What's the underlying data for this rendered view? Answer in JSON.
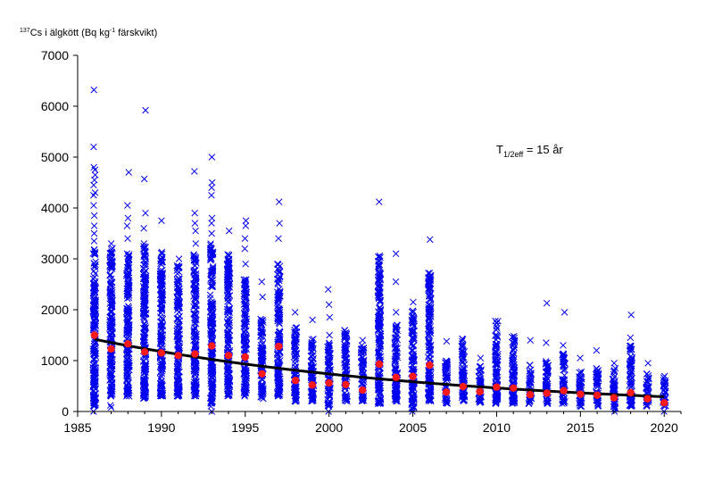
{
  "chart_data": {
    "type": "scatter",
    "ylabel": {
      "superscript": "137",
      "text_before_sup": "Cs i älgkött (Bq kg",
      "unit_superscript": "-1",
      "text_after_sup": "  färskvikt)"
    },
    "annotation": {
      "main": "T",
      "subscript": "1/2eff",
      "rest": " = 15 år"
    },
    "xlim": [
      1985,
      2021
    ],
    "ylim": [
      0,
      7000
    ],
    "x_ticks": [
      1985,
      1990,
      1995,
      2000,
      2005,
      2010,
      2015,
      2020
    ],
    "y_ticks": [
      0,
      1000,
      2000,
      3000,
      4000,
      5000,
      6000,
      7000
    ],
    "colors": {
      "samples": "#0000ee",
      "means": "#ff1a1a",
      "fit": "#000000"
    },
    "series": [
      {
        "kind": "samples",
        "marker": "x",
        "distribution": [
          {
            "year": 1986,
            "dense_min": 100,
            "dense_max": 3200,
            "outliers": [
              0,
              200,
              3350,
              3500,
              3650,
              3850,
              4050,
              4250,
              4300,
              4450,
              4550,
              4650,
              4750,
              4800,
              5200,
              6320
            ]
          },
          {
            "year": 1987,
            "dense_min": 300,
            "dense_max": 3250,
            "outliers": [
              80,
              120,
              3300
            ]
          },
          {
            "year": 1988,
            "dense_min": 300,
            "dense_max": 3200,
            "outliers": [
              3400,
              3650,
              3800,
              4050,
              4700
            ]
          },
          {
            "year": 1989,
            "dense_min": 250,
            "dense_max": 3250,
            "outliers": [
              3300,
              3600,
              3900,
              4570,
              5920
            ]
          },
          {
            "year": 1990,
            "dense_min": 300,
            "dense_max": 3150,
            "outliers": [
              3750
            ]
          },
          {
            "year": 1991,
            "dense_min": 300,
            "dense_max": 2900,
            "outliers": [
              3000
            ]
          },
          {
            "year": 1992,
            "dense_min": 300,
            "dense_max": 3100,
            "outliers": [
              3300,
              3550,
              3700,
              3900,
              4720
            ]
          },
          {
            "year": 1993,
            "dense_min": 150,
            "dense_max": 3300,
            "outliers": [
              0,
              100,
              3500,
              3700,
              3800,
              4250,
              4400,
              4500,
              5000
            ]
          },
          {
            "year": 1994,
            "dense_min": 300,
            "dense_max": 3100,
            "outliers": [
              3550
            ]
          },
          {
            "year": 1995,
            "dense_min": 300,
            "dense_max": 2600,
            "outliers": [
              2900,
              3200,
              3400,
              3650,
              3750
            ]
          },
          {
            "year": 1996,
            "dense_min": 250,
            "dense_max": 1850,
            "outliers": [
              2250,
              2550
            ]
          },
          {
            "year": 1997,
            "dense_min": 300,
            "dense_max": 2900,
            "outliers": [
              3400,
              3700,
              4120
            ]
          },
          {
            "year": 1998,
            "dense_min": 200,
            "dense_max": 1650,
            "outliers": [
              1950
            ]
          },
          {
            "year": 1999,
            "dense_min": 200,
            "dense_max": 1450,
            "outliers": [
              1800
            ]
          },
          {
            "year": 2000,
            "dense_min": 100,
            "dense_max": 1350,
            "outliers": [
              0,
              1500,
              1850,
              2100,
              2400
            ]
          },
          {
            "year": 2001,
            "dense_min": 200,
            "dense_max": 1600,
            "outliers": []
          },
          {
            "year": 2002,
            "dense_min": 200,
            "dense_max": 1300,
            "outliers": [
              1400
            ]
          },
          {
            "year": 2003,
            "dense_min": 150,
            "dense_max": 3100,
            "outliers": [
              4120
            ]
          },
          {
            "year": 2004,
            "dense_min": 200,
            "dense_max": 1700,
            "outliers": [
              1950,
              2550,
              3100
            ]
          },
          {
            "year": 2005,
            "dense_min": 50,
            "dense_max": 2000,
            "outliers": [
              0,
              2150
            ]
          },
          {
            "year": 2006,
            "dense_min": 200,
            "dense_max": 2750,
            "outliers": [
              3380
            ]
          },
          {
            "year": 2007,
            "dense_min": 150,
            "dense_max": 1000,
            "outliers": [
              1380
            ]
          },
          {
            "year": 2008,
            "dense_min": 200,
            "dense_max": 1450,
            "outliers": []
          },
          {
            "year": 2009,
            "dense_min": 150,
            "dense_max": 900,
            "outliers": [
              1050
            ]
          },
          {
            "year": 2010,
            "dense_min": 150,
            "dense_max": 1800,
            "outliers": []
          },
          {
            "year": 2011,
            "dense_min": 150,
            "dense_max": 1500,
            "outliers": []
          },
          {
            "year": 2012,
            "dense_min": 150,
            "dense_max": 950,
            "outliers": [
              1400
            ]
          },
          {
            "year": 2013,
            "dense_min": 150,
            "dense_max": 1000,
            "outliers": [
              1350,
              2130
            ]
          },
          {
            "year": 2014,
            "dense_min": 150,
            "dense_max": 1150,
            "outliers": [
              1300,
              1950
            ]
          },
          {
            "year": 2015,
            "dense_min": 100,
            "dense_max": 850,
            "outliers": [
              1050
            ]
          },
          {
            "year": 2016,
            "dense_min": 100,
            "dense_max": 900,
            "outliers": [
              1200
            ]
          },
          {
            "year": 2017,
            "dense_min": 50,
            "dense_max": 850,
            "outliers": [
              0,
              950
            ]
          },
          {
            "year": 2018,
            "dense_min": 100,
            "dense_max": 1300,
            "outliers": [
              1450,
              1900
            ]
          },
          {
            "year": 2019,
            "dense_min": 100,
            "dense_max": 750,
            "outliers": [
              950
            ]
          },
          {
            "year": 2020,
            "dense_min": 100,
            "dense_max": 700,
            "outliers": [
              0
            ]
          }
        ]
      },
      {
        "kind": "means",
        "marker": "circle",
        "x": [
          1986,
          1987,
          1988,
          1989,
          1990,
          1991,
          1992,
          1993,
          1994,
          1995,
          1996,
          1997,
          1998,
          1999,
          2000,
          2001,
          2002,
          2003,
          2004,
          2005,
          2006,
          2007,
          2008,
          2009,
          2010,
          2011,
          2012,
          2013,
          2014,
          2015,
          2016,
          2017,
          2018,
          2019,
          2020
        ],
        "y": [
          1500,
          1230,
          1330,
          1170,
          1150,
          1100,
          1130,
          1290,
          1100,
          1070,
          740,
          1280,
          610,
          520,
          560,
          530,
          420,
          930,
          670,
          690,
          910,
          380,
          490,
          390,
          480,
          460,
          330,
          360,
          410,
          340,
          320,
          270,
          370,
          250,
          170
        ]
      },
      {
        "kind": "fit",
        "model": "exponential",
        "half_life_years": 15,
        "start": [
          1986,
          1420
        ],
        "end": [
          2020,
          290
        ]
      }
    ]
  }
}
